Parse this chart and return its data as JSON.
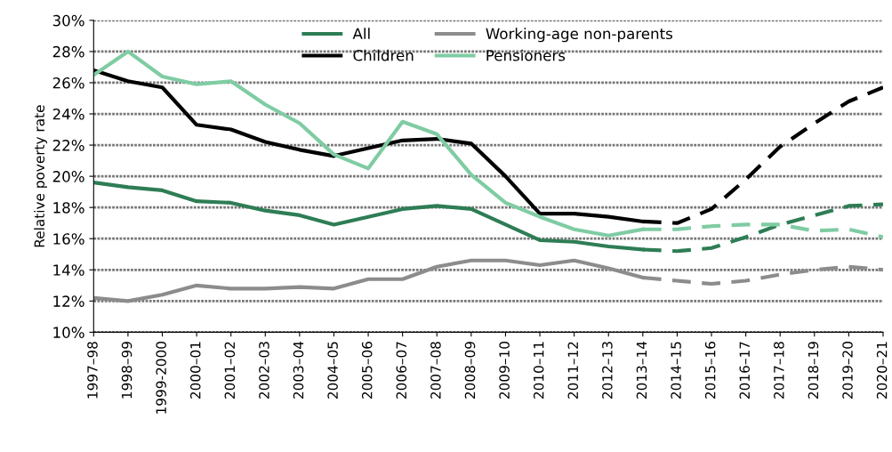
{
  "chart_data": {
    "type": "line",
    "ylabel": "Relative poverty rate",
    "categories": [
      "1997–98",
      "1998–99",
      "1999-2000",
      "2000–01",
      "2001–02",
      "2002–03",
      "2003–04",
      "2004–05",
      "2005–06",
      "2006–07",
      "2007–08",
      "2008–09",
      "2009–10",
      "2010–11",
      "2011–12",
      "2012–13",
      "2013–14",
      "2014–15",
      "2015–16",
      "2016–17",
      "2017–18",
      "2018–19",
      "2019–20",
      "2020–21"
    ],
    "series": [
      {
        "name": "All",
        "color": "#2e7d55",
        "line_style": "solid",
        "values": [
          19.6,
          19.3,
          19.1,
          18.4,
          18.3,
          17.8,
          17.5,
          16.9,
          17.4,
          17.9,
          18.1,
          17.9,
          16.9,
          15.9,
          15.8,
          15.5,
          15.3,
          null,
          null,
          null,
          null,
          null,
          null,
          null
        ]
      },
      {
        "name": "Children",
        "color": "#000000",
        "line_style": "solid",
        "values": [
          26.8,
          26.1,
          25.7,
          23.3,
          23.0,
          22.2,
          21.7,
          21.3,
          21.8,
          22.3,
          22.4,
          22.1,
          20.0,
          17.6,
          17.6,
          17.4,
          17.1,
          null,
          null,
          null,
          null,
          null,
          null,
          null
        ]
      },
      {
        "name": "Working-age non-parents",
        "color": "#8c8c8c",
        "line_style": "solid",
        "values": [
          12.2,
          12.0,
          12.4,
          13.0,
          12.8,
          12.8,
          12.9,
          12.8,
          13.4,
          13.4,
          14.2,
          14.6,
          14.6,
          14.3,
          14.6,
          14.1,
          13.5,
          null,
          null,
          null,
          null,
          null,
          null,
          null
        ]
      },
      {
        "name": "Pensioners",
        "color": "#7fcca3",
        "line_style": "solid",
        "values": [
          26.5,
          28.0,
          26.4,
          25.9,
          26.1,
          24.6,
          23.4,
          21.4,
          20.5,
          23.5,
          22.7,
          20.1,
          18.3,
          17.4,
          16.6,
          16.2,
          16.6,
          null,
          null,
          null,
          null,
          null,
          null,
          null
        ]
      },
      {
        "color": "#2e7d55",
        "line_style": "dashed",
        "values": [
          null,
          null,
          null,
          null,
          null,
          null,
          null,
          null,
          null,
          null,
          null,
          null,
          null,
          null,
          null,
          null,
          15.3,
          15.2,
          15.4,
          16.1,
          16.9,
          17.5,
          18.1,
          18.2
        ]
      },
      {
        "color": "#000000",
        "line_style": "dashed",
        "values": [
          null,
          null,
          null,
          null,
          null,
          null,
          null,
          null,
          null,
          null,
          null,
          null,
          null,
          null,
          null,
          null,
          17.1,
          17.0,
          17.9,
          19.8,
          21.9,
          23.4,
          24.8,
          25.7
        ]
      },
      {
        "color": "#8c8c8c",
        "line_style": "dashed",
        "values": [
          null,
          null,
          null,
          null,
          null,
          null,
          null,
          null,
          null,
          null,
          null,
          null,
          null,
          null,
          null,
          null,
          13.5,
          13.3,
          13.1,
          13.3,
          13.7,
          14.0,
          14.2,
          14.0
        ]
      },
      {
        "color": "#7fcca3",
        "line_style": "dashed",
        "values": [
          null,
          null,
          null,
          null,
          null,
          null,
          null,
          null,
          null,
          null,
          null,
          null,
          null,
          null,
          null,
          null,
          16.6,
          16.6,
          16.8,
          16.9,
          16.9,
          16.5,
          16.6,
          16.1
        ]
      }
    ],
    "ylim": [
      10,
      30
    ],
    "yticks": [
      {
        "value": 10,
        "label": "10%"
      },
      {
        "value": 12,
        "label": "12%"
      },
      {
        "value": 14,
        "label": "14%"
      },
      {
        "value": 16,
        "label": "16%"
      },
      {
        "value": 18,
        "label": "18%"
      },
      {
        "value": 20,
        "label": "20%"
      },
      {
        "value": 22,
        "label": "22%"
      },
      {
        "value": 24,
        "label": "24%"
      },
      {
        "value": 26,
        "label": "26%"
      },
      {
        "value": 28,
        "label": "28%"
      },
      {
        "value": 30,
        "label": "30%"
      }
    ],
    "grid": "y",
    "legend": "top"
  }
}
